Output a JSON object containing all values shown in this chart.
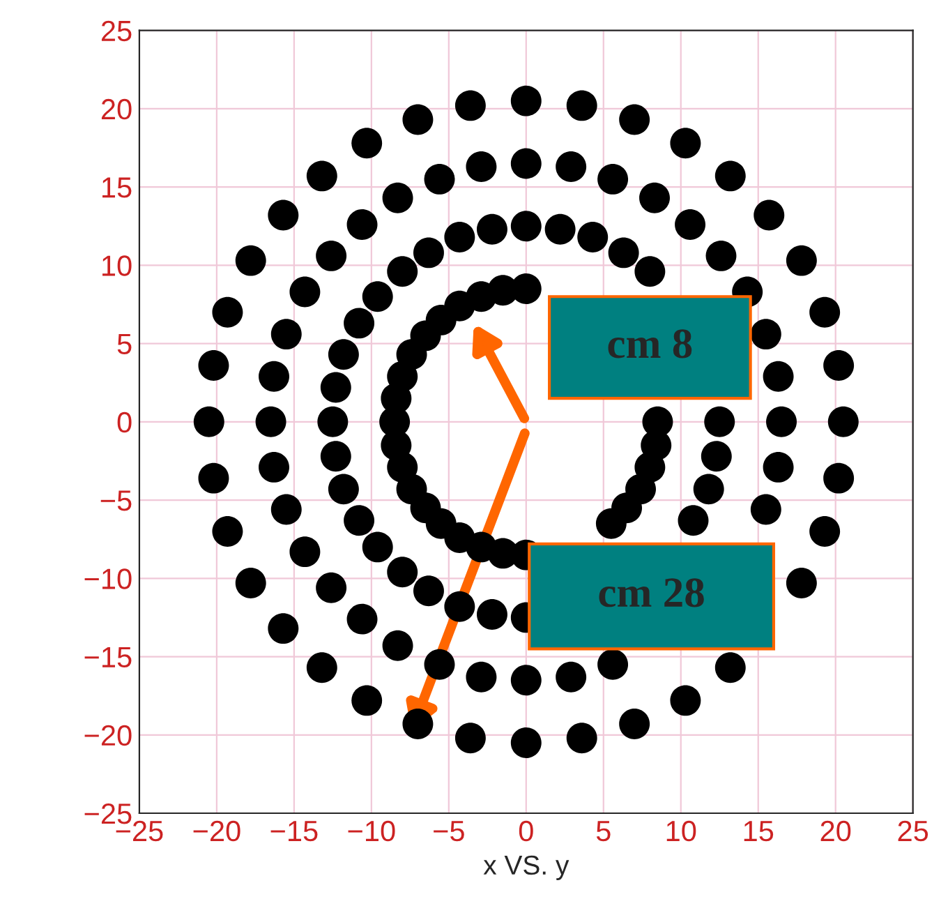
{
  "chart_data": {
    "type": "scatter",
    "xlabel": "x VS. y",
    "series": [
      {
        "color": "#000000",
        "x": [
          8.5,
          8.4,
          8.0,
          7.4,
          6.5,
          5.5,
          4.3,
          2.9,
          1.5,
          0,
          -1.5,
          -2.9,
          -4.3,
          -5.5,
          -6.5,
          -7.4,
          -8.0,
          -8.4,
          -8.5,
          -8.4,
          -8.0,
          -7.4,
          -6.5,
          -5.5,
          -4.3,
          -2.9,
          -1.5,
          0,
          1.5,
          2.9,
          4.3,
          5.5,
          6.5,
          7.4,
          8.0,
          8.4
        ],
        "values": [
          0,
          null,
          null,
          null,
          null,
          null,
          null,
          null,
          null,
          8.5,
          8.4,
          8.0,
          7.4,
          6.5,
          5.5,
          4.3,
          2.9,
          1.5,
          0,
          -1.5,
          -2.9,
          -4.3,
          -5.5,
          -6.5,
          -7.4,
          -8.0,
          -8.4,
          -8.5,
          null,
          null,
          null,
          -6.5,
          -5.5,
          -4.3,
          -2.9,
          -1.5
        ]
      },
      {
        "color": "#000000",
        "x": [
          12.5,
          12.3,
          11.8,
          10.8,
          9.6,
          8.0,
          6.3,
          4.3,
          2.2,
          0,
          -2.2,
          -4.3,
          -6.3,
          -8.0,
          -9.6,
          -10.8,
          -11.8,
          -12.3,
          -12.5,
          -12.3,
          -11.8,
          -10.8,
          -9.6,
          -8.0,
          -6.3,
          -4.3,
          -2.2,
          0,
          2.2,
          4.3,
          6.3,
          8.0,
          9.6,
          10.8,
          11.8,
          12.3
        ],
        "values": [
          0,
          null,
          null,
          null,
          null,
          9.6,
          10.8,
          11.8,
          12.3,
          12.5,
          12.3,
          11.8,
          10.8,
          9.6,
          8.0,
          6.3,
          4.3,
          2.2,
          0,
          -2.2,
          -4.3,
          -6.3,
          -8.0,
          -9.6,
          -10.8,
          -11.8,
          -12.3,
          -12.5,
          null,
          null,
          null,
          null,
          null,
          -6.3,
          -4.3,
          -2.2
        ]
      },
      {
        "color": "#000000",
        "x": [
          16.5,
          16.3,
          15.5,
          14.3,
          12.6,
          10.6,
          8.3,
          5.6,
          2.9,
          0,
          -2.9,
          -5.6,
          -8.3,
          -10.6,
          -12.6,
          -14.3,
          -15.5,
          -16.3,
          -16.5,
          -16.3,
          -15.5,
          -14.3,
          -12.6,
          -10.6,
          -8.3,
          -5.6,
          -2.9,
          0,
          2.9,
          5.6,
          8.3,
          10.6,
          12.6,
          14.3,
          15.5,
          16.3
        ],
        "values": [
          0,
          2.9,
          5.6,
          8.3,
          10.6,
          12.6,
          14.3,
          15.5,
          16.3,
          16.5,
          16.3,
          15.5,
          14.3,
          12.6,
          10.6,
          8.3,
          5.6,
          2.9,
          0,
          -2.9,
          -5.6,
          -8.3,
          -10.6,
          -12.6,
          -14.3,
          -15.5,
          -16.3,
          -16.5,
          -16.3,
          -15.5,
          null,
          null,
          null,
          null,
          -5.6,
          -2.9
        ]
      },
      {
        "color": "#000000",
        "x": [
          20.5,
          20.2,
          19.3,
          17.8,
          15.7,
          13.2,
          10.3,
          7.0,
          3.6,
          0,
          -3.6,
          -7.0,
          -10.3,
          -13.2,
          -15.7,
          -17.8,
          -19.3,
          -20.2,
          -20.5,
          -20.2,
          -19.3,
          -17.8,
          -15.7,
          -13.2,
          -10.3,
          -7.0,
          -3.6,
          0,
          3.6,
          7.0,
          10.3,
          13.2,
          15.7,
          17.8,
          19.3,
          20.2
        ],
        "values": [
          0,
          3.6,
          7.0,
          10.3,
          13.2,
          15.7,
          17.8,
          19.3,
          20.2,
          20.5,
          20.2,
          19.3,
          17.8,
          15.7,
          13.2,
          10.3,
          7.0,
          3.6,
          0,
          -3.6,
          -7.0,
          -10.3,
          -13.2,
          -15.7,
          -17.8,
          -19.3,
          -20.2,
          -20.5,
          -20.2,
          -19.3,
          -17.8,
          -15.7,
          null,
          -10.3,
          -7.0,
          -3.6
        ]
      }
    ],
    "xlim": [
      -25,
      25
    ],
    "ylim": [
      -25,
      25
    ],
    "xticks": [
      -25,
      -20,
      -15,
      -10,
      -5,
      0,
      5,
      10,
      15,
      20,
      25
    ],
    "yticks": [
      -25,
      -20,
      -15,
      -10,
      -5,
      0,
      5,
      10,
      15,
      20,
      25
    ],
    "grid": true,
    "marker": "circle",
    "annotations": [
      "cm 8",
      "cm 28"
    ]
  }
}
